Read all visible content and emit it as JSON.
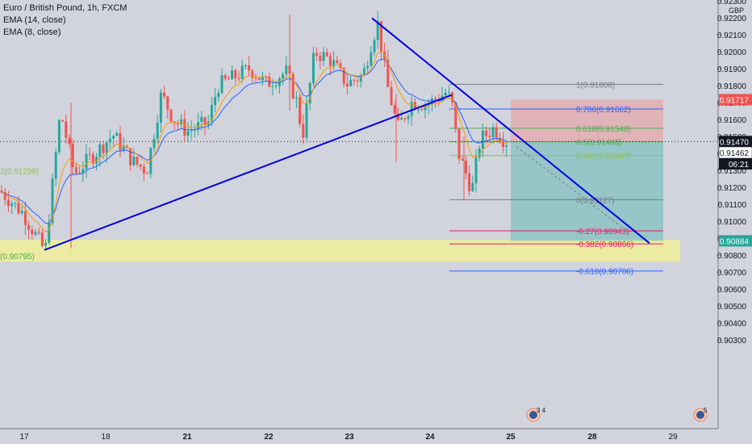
{
  "legend": {
    "title": "Euro / British Pound, 1h, FXCM",
    "ema14": "EMA (14, close)",
    "ema8": "EMA (8, close)"
  },
  "price_axis": {
    "currency": "GBP",
    "ticks": [
      "0.92300",
      "0.92200",
      "0.92100",
      "0.92000",
      "0.91900",
      "0.91800",
      "0.91700",
      "0.91600",
      "0.91500",
      "0.91400",
      "0.91300",
      "0.91200",
      "0.91100",
      "0.91000",
      "0.90900",
      "0.90800",
      "0.90700",
      "0.90600",
      "0.90500",
      "0.90400",
      "0.90300"
    ],
    "price_labels": [
      {
        "price": 0.91717,
        "text": "0.91717",
        "bg": "#ef5350",
        "fg": "#ffffff"
      },
      {
        "price": 0.9147,
        "text": "0.91470",
        "bg": "#131722",
        "fg": "#ffffff"
      },
      {
        "price": 0.91462,
        "text": "0.91462",
        "bg": "#ffffff",
        "fg": "#131722"
      },
      {
        "price": 0.90884,
        "text": "0.90884",
        "bg": "#26a69a",
        "fg": "#ffffff"
      }
    ],
    "countdown": "06:21"
  },
  "time_axis": {
    "labels": [
      {
        "text": "17",
        "bold": false
      },
      {
        "text": "18",
        "bold": false
      },
      {
        "text": "21",
        "bold": true
      },
      {
        "text": "22",
        "bold": true
      },
      {
        "text": "23",
        "bold": true
      },
      {
        "text": "24",
        "bold": true
      },
      {
        "text": "25",
        "bold": true
      },
      {
        "text": "28",
        "bold": true
      },
      {
        "text": "29",
        "bold": false
      }
    ]
  },
  "chart_data": {
    "type": "candlestick",
    "symbol": "EURGBP",
    "timeframe": "1h",
    "ylim": [
      0.902,
      0.9235
    ],
    "fib_levels": [
      {
        "label": "1(0.91808)",
        "price": 0.91808,
        "color": "#787b86"
      },
      {
        "label": "0.786(0.91662)",
        "price": 0.91662,
        "color": "#2962ff"
      },
      {
        "label": "0.618(0.91548)",
        "price": 0.91548,
        "color": "#4caf50"
      },
      {
        "label": "0.5(0.91468)",
        "price": 0.91468,
        "color": "#4caf50"
      },
      {
        "label": "0.382(0.91387)",
        "price": 0.91387,
        "color": "#8bc34a"
      },
      {
        "label": "0(0.91127)",
        "price": 0.91127,
        "color": "#787b86"
      },
      {
        "label": "-0.27(0.90943)",
        "price": 0.90943,
        "color": "#e91e63"
      },
      {
        "label": "-0.382(0.90866)",
        "price": 0.90866,
        "color": "#e91e63"
      },
      {
        "label": "-0.618(0.90706)",
        "price": 0.90706,
        "color": "#2962ff"
      }
    ],
    "left_labels": [
      {
        "text": "2(0.91298)",
        "price": 0.91298,
        "color": "#8bc34a"
      },
      {
        "text": "(0.90795)",
        "price": 0.90795,
        "color": "#4caf50"
      }
    ],
    "support_zone": {
      "top": 0.9088,
      "bottom": 0.9078
    },
    "position": {
      "entry": 0.9147,
      "stop": 0.91717,
      "target": 0.90884
    },
    "candles": []
  },
  "events": [
    {
      "label": "3 4",
      "icon": "flag-icon"
    },
    {
      "label": "5",
      "icon": "flag-icon"
    }
  ],
  "colors": {
    "up": "#26a69a",
    "down": "#ef5350",
    "ema14": "#2962ff",
    "ema8": "#ff9800",
    "trendline": "#0000e0"
  }
}
